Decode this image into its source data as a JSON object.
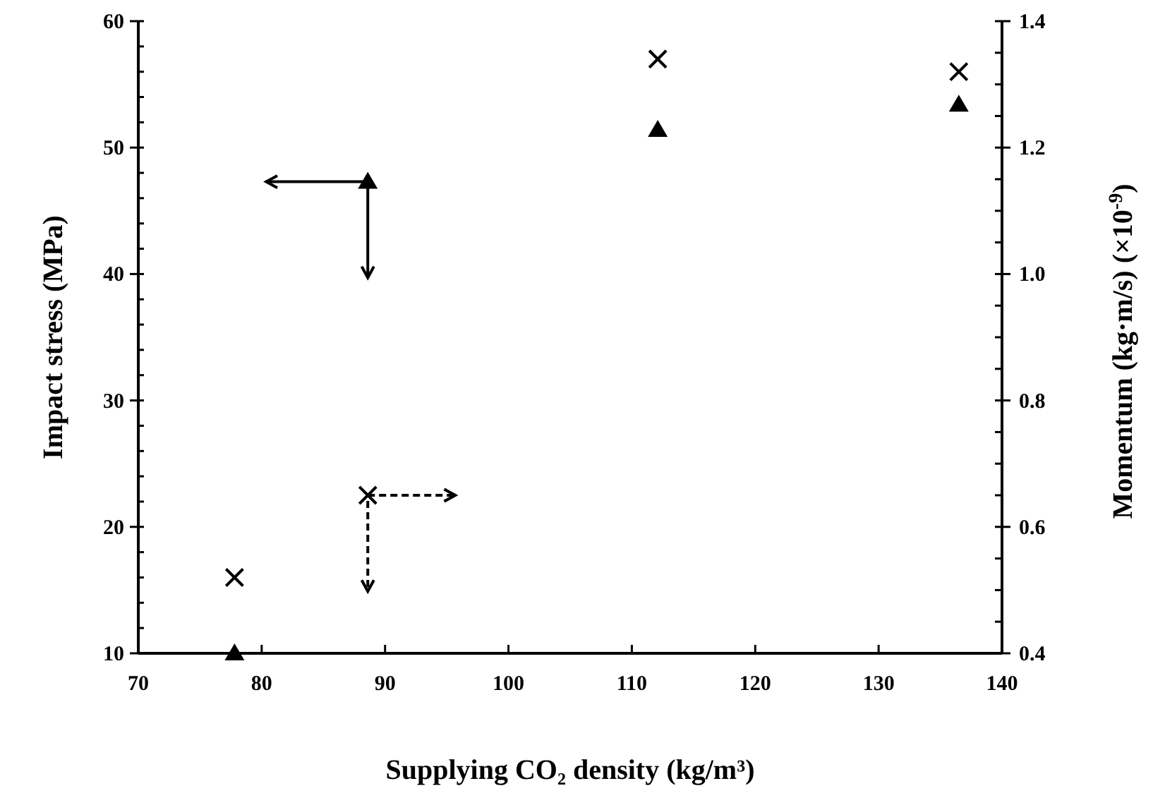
{
  "chart_data": {
    "type": "scatter",
    "xlabel": "Supplying CO₂ density (kg/m³)",
    "ylabel": "Impact stress (MPa)",
    "y2label": "Momentum (kg·m/s) (×10$^{-9}$)",
    "xlim": [
      70,
      140
    ],
    "xticks": [
      70,
      80,
      90,
      100,
      110,
      120,
      130,
      140
    ],
    "ylim": [
      10,
      60
    ],
    "yticks": [
      10,
      {
        "value": 12,
        "label": null
      },
      {
        "value": 14,
        "label": null
      },
      {
        "value": 16,
        "label": null
      },
      {
        "value": 18,
        "label": null
      },
      20,
      {
        "value": 22,
        "label": null
      },
      {
        "value": 24,
        "label": null
      },
      {
        "value": 26,
        "label": null
      },
      {
        "value": 28,
        "label": null
      },
      30,
      {
        "value": 32,
        "label": null
      },
      {
        "value": 34,
        "label": null
      },
      {
        "value": 36,
        "label": null
      },
      {
        "value": 38,
        "label": null
      },
      40,
      {
        "value": 42,
        "label": null
      },
      {
        "value": 44,
        "label": null
      },
      {
        "value": 46,
        "label": null
      },
      {
        "value": 48,
        "label": null
      },
      50,
      {
        "value": 52,
        "label": null
      },
      {
        "value": 54,
        "label": null
      },
      {
        "value": 56,
        "label": null
      },
      {
        "value": 58,
        "label": null
      },
      60
    ],
    "y2lim": [
      0.4,
      1.4
    ],
    "y2ticks": [
      {
        "value": 0.4,
        "label": "0.4"
      },
      {
        "value": 0.45,
        "label": null
      },
      {
        "value": 0.5,
        "label": null
      },
      {
        "value": 0.55,
        "label": null
      },
      {
        "value": 0.6,
        "label": "0.6"
      },
      {
        "value": 0.65,
        "label": null
      },
      {
        "value": 0.7,
        "label": null
      },
      {
        "value": 0.75,
        "label": null
      },
      {
        "value": 0.8,
        "label": "0.8"
      },
      {
        "value": 0.85,
        "label": null
      },
      {
        "value": 0.9,
        "label": null
      },
      {
        "value": 0.95,
        "label": null
      },
      {
        "value": 1.0,
        "label": "1.0"
      },
      {
        "value": 1.05,
        "label": null
      },
      {
        "value": 1.1,
        "label": null
      },
      {
        "value": 1.15,
        "label": null
      },
      {
        "value": 1.2,
        "label": "1.2"
      },
      {
        "value": 1.25,
        "label": null
      },
      {
        "value": 1.3,
        "label": null
      },
      {
        "value": 1.35,
        "label": null
      },
      {
        "value": 1.4,
        "label": "1.4"
      }
    ],
    "x": [
      77.8,
      88.6,
      112.1,
      136.5
    ],
    "series": [
      {
        "color": "#000000",
        "marker": "triangle",
        "values": [
          10,
          47.3,
          51.4,
          53.4
        ]
      },
      {
        "color": "#000000",
        "marker": "cross",
        "axis": "y2",
        "values": [
          0.52,
          0.65,
          1.34,
          1.32
        ]
      }
    ],
    "grid": false
  }
}
